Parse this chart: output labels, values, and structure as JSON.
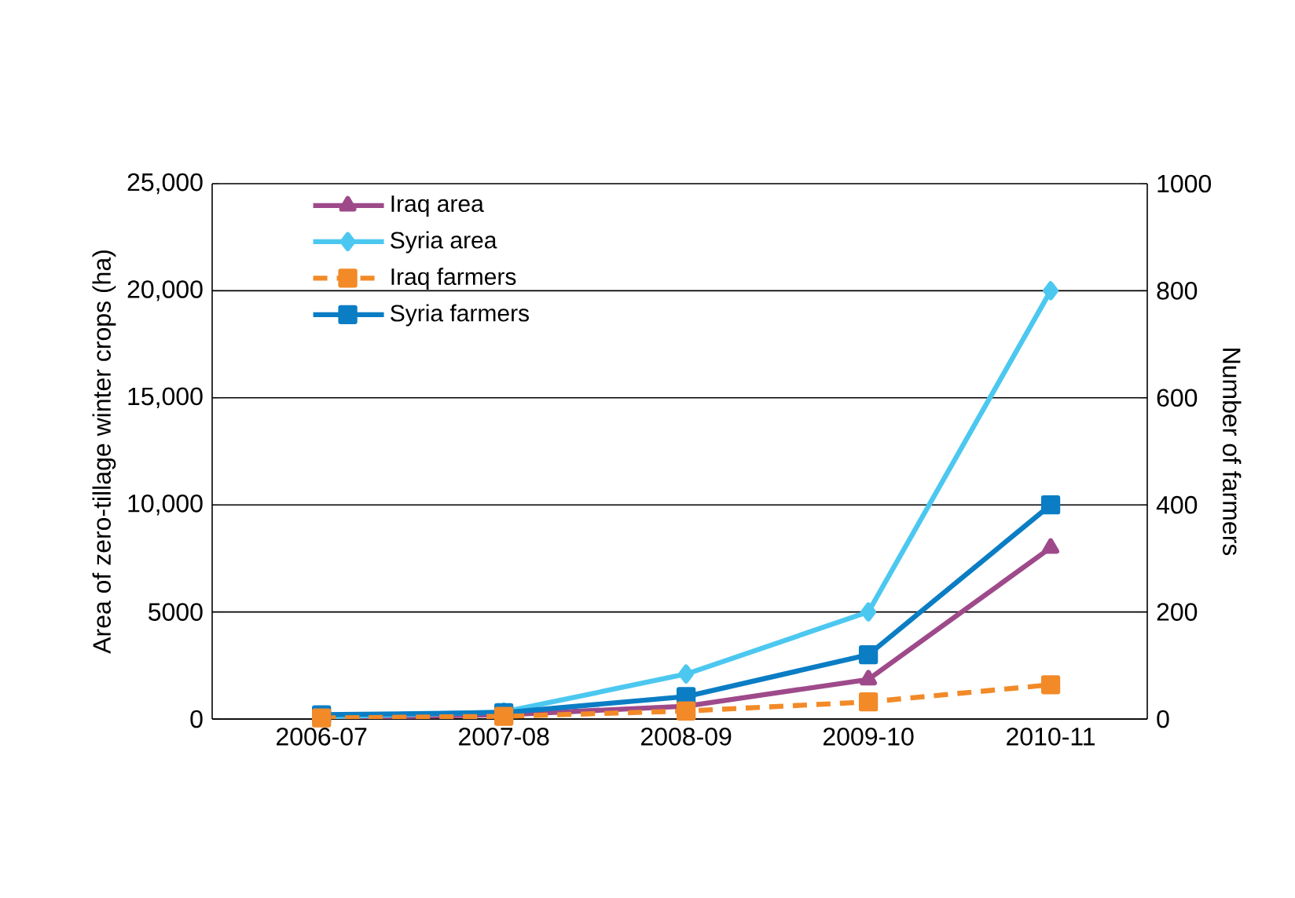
{
  "chart_data": {
    "type": "line",
    "ylabel": "Area of  zero-tillage winter crops (ha)",
    "y2label": "Number of farmers",
    "categories": [
      "2006-07",
      "2007-08",
      "2008-09",
      "2009-10",
      "2010-11"
    ],
    "series": [
      {
        "name": "Iraq area",
        "color": "#9e4a8a",
        "marker": "triangle",
        "line_style": "solid",
        "values": [
          50,
          200,
          600,
          1850,
          8000
        ]
      },
      {
        "name": "Syria area",
        "color": "#4cc8f0",
        "marker": "diamond",
        "line_style": "solid",
        "values": [
          100,
          330,
          2100,
          5000,
          20000
        ]
      },
      {
        "name": "Iraq farmers",
        "color": "#f28a28",
        "marker": "square",
        "line_style": "dashed",
        "axis": "y2",
        "values": [
          2,
          5,
          15,
          32,
          64
        ]
      },
      {
        "name": "Syria farmers",
        "color": "#0a7dc4",
        "marker": "square",
        "line_style": "solid",
        "axis": "y2",
        "values": [
          8,
          12,
          42,
          120,
          400
        ]
      }
    ],
    "ylim": [
      0,
      25000
    ],
    "yticks": [
      0,
      5000,
      {
        "value": 10000,
        "label": "10,000"
      },
      {
        "value": 15000,
        "label": "15,000"
      },
      {
        "value": 20000,
        "label": "20,000"
      },
      {
        "value": 25000,
        "label": "25,000"
      }
    ],
    "y2lim": [
      0,
      1000
    ],
    "y2ticks": [
      0,
      200,
      400,
      600,
      800,
      1000
    ],
    "grid": "y",
    "legend": "top left"
  }
}
